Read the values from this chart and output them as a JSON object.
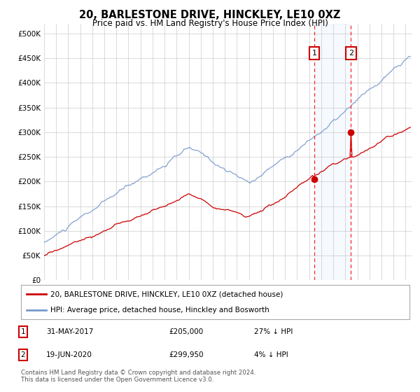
{
  "title": "20, BARLESTONE DRIVE, HINCKLEY, LE10 0XZ",
  "subtitle": "Price paid vs. HM Land Registry's House Price Index (HPI)",
  "ylim": [
    0,
    520000
  ],
  "yticks": [
    0,
    50000,
    100000,
    150000,
    200000,
    250000,
    300000,
    350000,
    400000,
    450000,
    500000
  ],
  "ytick_labels": [
    "£0",
    "£50K",
    "£100K",
    "£150K",
    "£200K",
    "£250K",
    "£300K",
    "£350K",
    "£400K",
    "£450K",
    "£500K"
  ],
  "xlim_start": 1995.0,
  "xlim_end": 2025.5,
  "hpi_color": "#7799cc",
  "property_color": "#cc0000",
  "marker1_x": 2017.42,
  "marker1_y": 205000,
  "marker2_x": 2020.46,
  "marker2_y": 299950,
  "marker1_label": "31-MAY-2017",
  "marker1_price": "£205,000",
  "marker1_hpi": "27% ↓ HPI",
  "marker2_label": "19-JUN-2020",
  "marker2_price": "£299,950",
  "marker2_hpi": "4% ↓ HPI",
  "legend_line1": "20, BARLESTONE DRIVE, HINCKLEY, LE10 0XZ (detached house)",
  "legend_line2": "HPI: Average price, detached house, Hinckley and Bosworth",
  "footer": "Contains HM Land Registry data © Crown copyright and database right 2024.\nThis data is licensed under the Open Government Licence v3.0.",
  "background_color": "#ffffff",
  "grid_color": "#cccccc"
}
